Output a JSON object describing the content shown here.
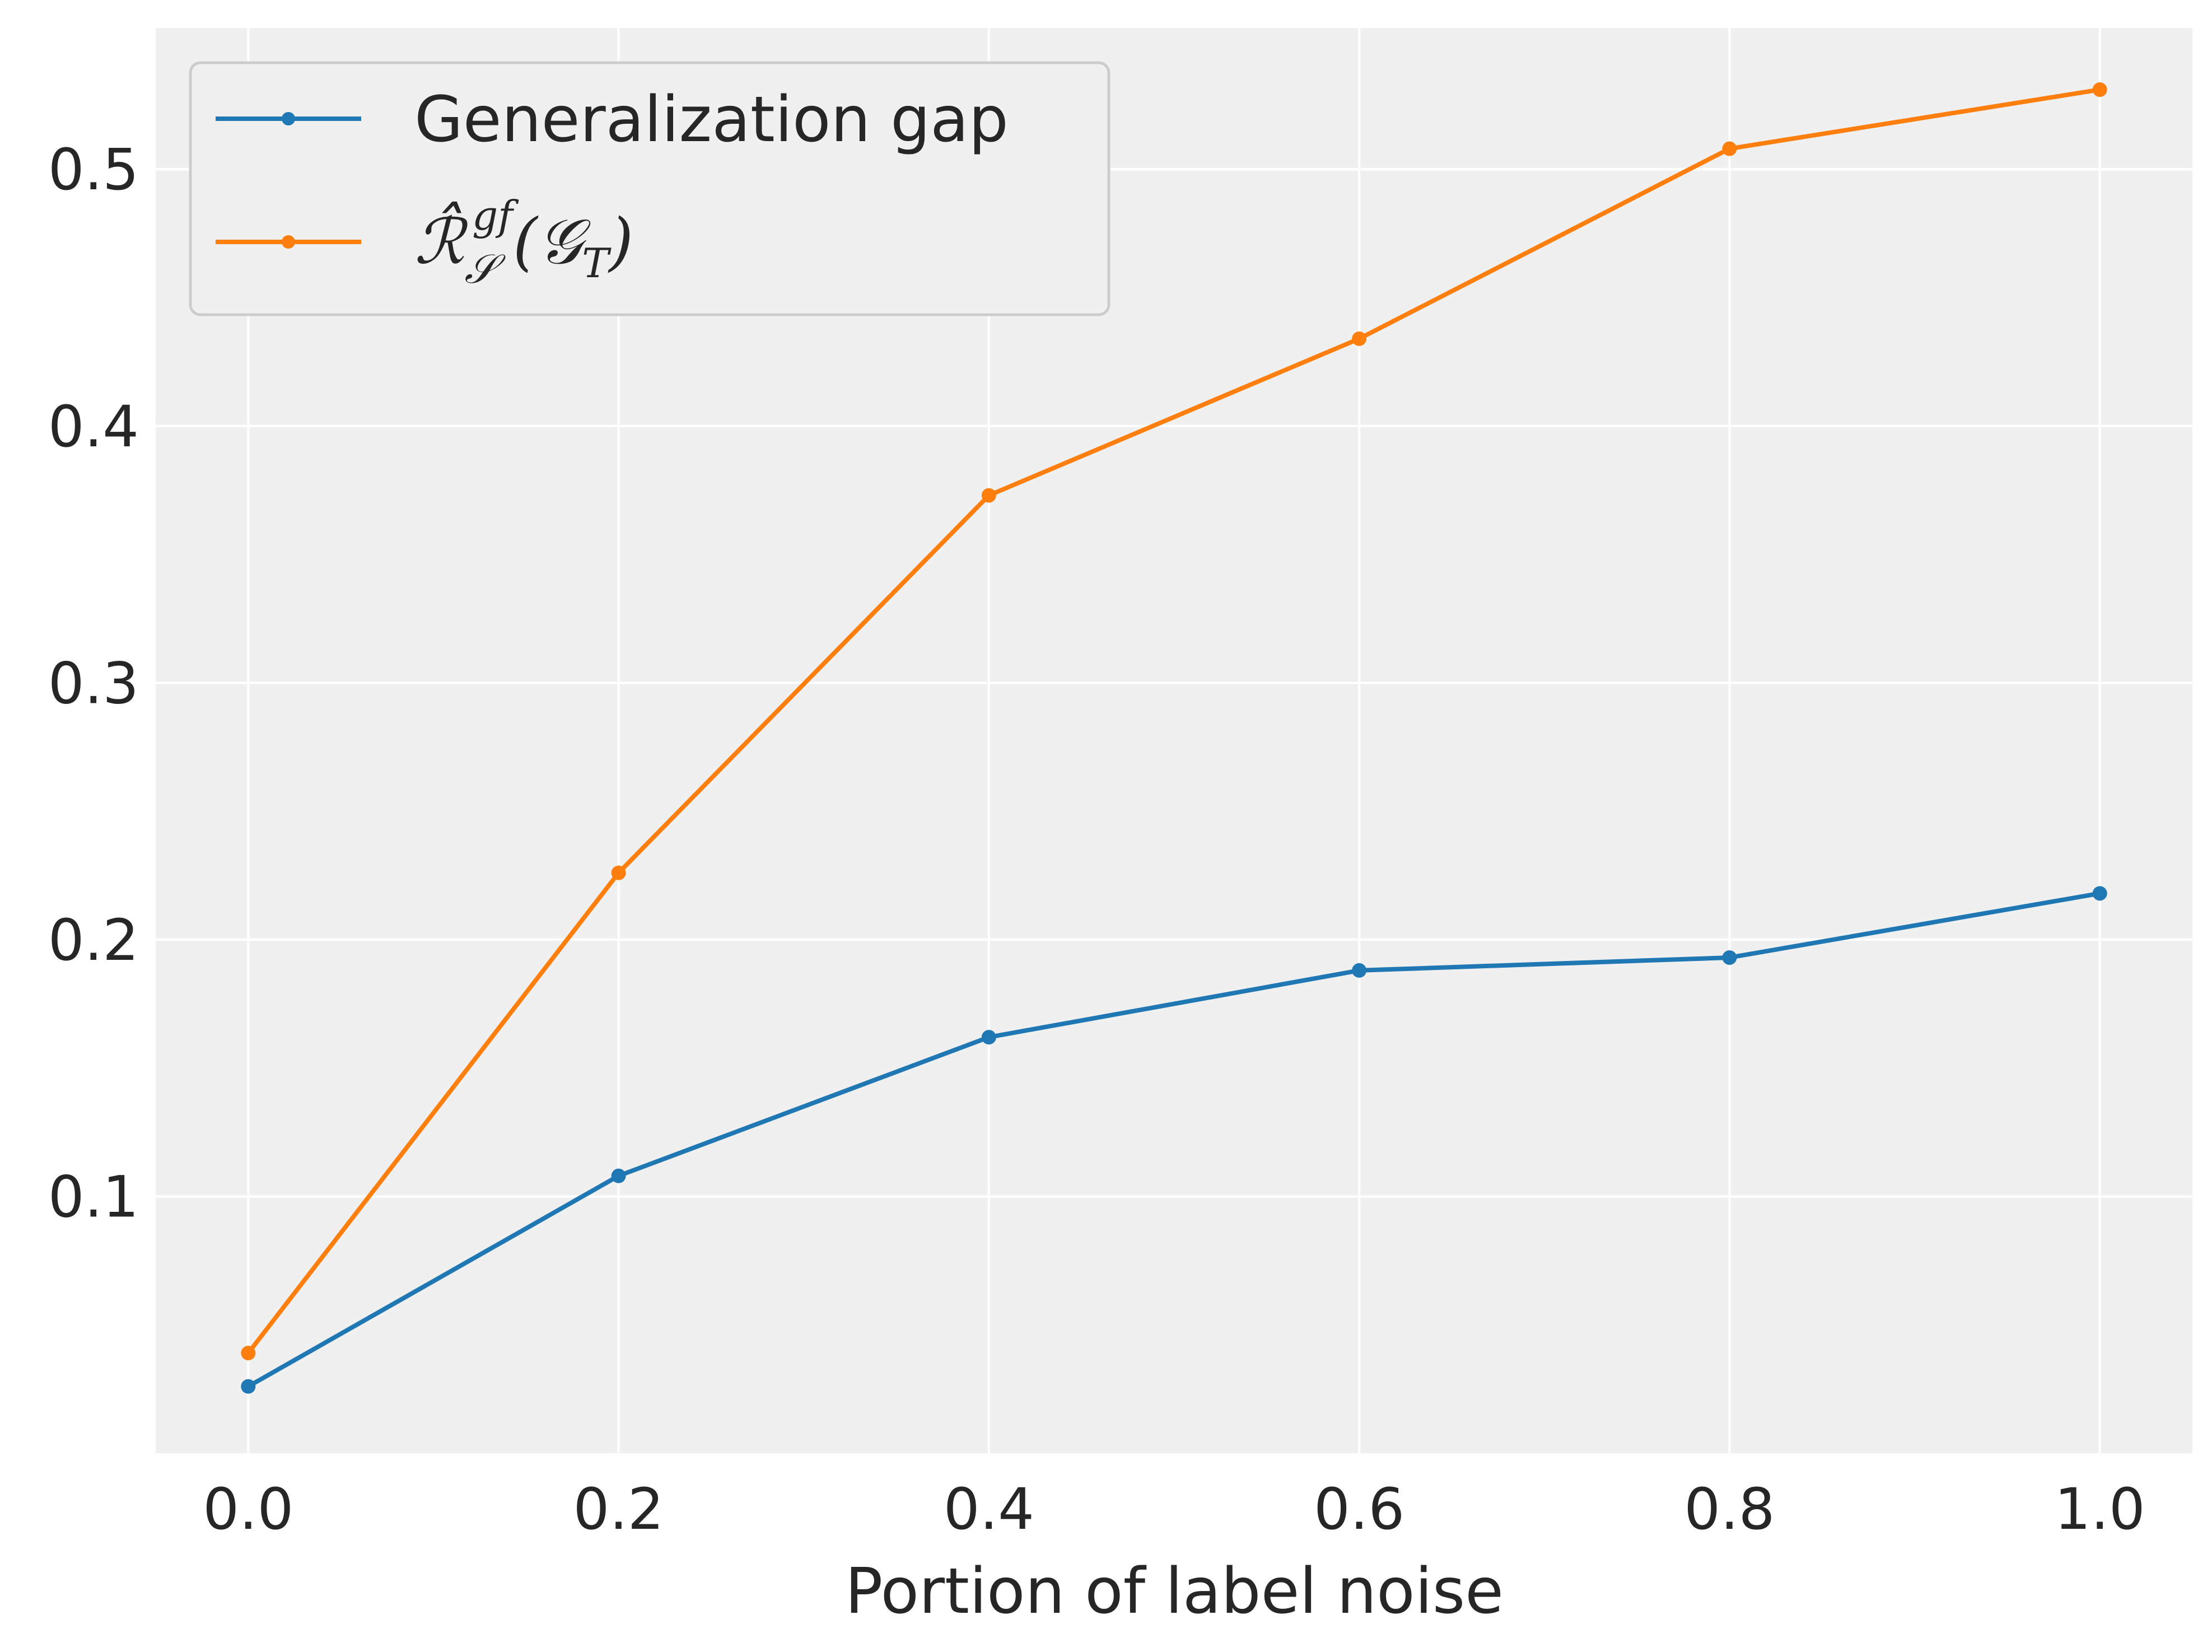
{
  "chart_data": {
    "type": "line",
    "title": "",
    "xlabel": "Portion of label noise",
    "ylabel": "",
    "x": [
      0.0,
      0.2,
      0.4,
      0.6,
      0.8,
      1.0
    ],
    "xlim": [
      -0.05,
      1.05
    ],
    "ylim": [
      0.0,
      0.555
    ],
    "xticks": [
      0.0,
      0.2,
      0.4,
      0.6,
      0.8,
      1.0
    ],
    "xtick_labels": [
      "0.0",
      "0.2",
      "0.4",
      "0.6",
      "0.8",
      "1.0"
    ],
    "yticks": [
      0.1,
      0.2,
      0.3,
      0.4,
      0.5
    ],
    "ytick_labels": [
      "0.1",
      "0.2",
      "0.3",
      "0.4",
      "0.5"
    ],
    "grid": true,
    "legend_position": "top-left",
    "series": [
      {
        "name": "Generalization gap",
        "color": "#1f77b4",
        "values": [
          0.026,
          0.108,
          0.162,
          0.188,
          0.193,
          0.218
        ]
      },
      {
        "name": "R̂_S^gf(G_T)",
        "color": "#ff7f0e",
        "values": [
          0.039,
          0.226,
          0.373,
          0.434,
          0.508,
          0.531
        ]
      }
    ]
  }
}
